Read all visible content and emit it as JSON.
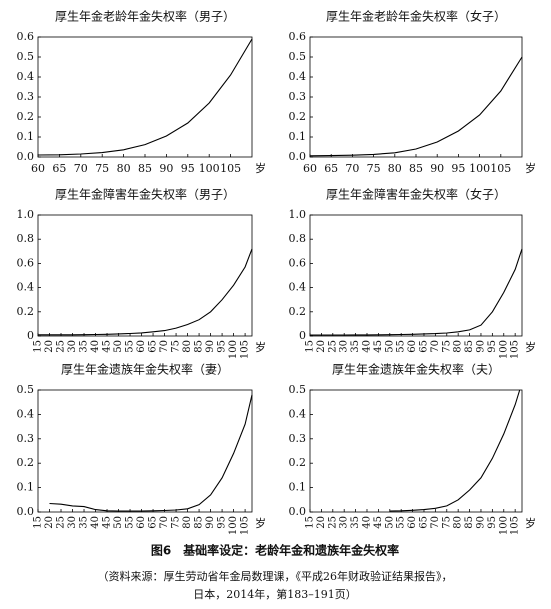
{
  "chart_data": [
    {
      "type": "line",
      "title": "厚生年金老龄年金失权率（男子）",
      "xlabel": "岁",
      "color": "#000000",
      "x": [
        60,
        65,
        70,
        75,
        80,
        85,
        90,
        95,
        100,
        105,
        110
      ],
      "values": [
        0.01,
        0.011,
        0.015,
        0.022,
        0.036,
        0.062,
        0.105,
        0.17,
        0.27,
        0.41,
        0.59
      ],
      "xlim": [
        60,
        110
      ],
      "xticks": [
        60,
        65,
        70,
        75,
        80,
        85,
        90,
        95,
        100,
        105
      ],
      "ylim": [
        0,
        0.6
      ],
      "yticks": [
        {
          "value": 0,
          "label": "0.0"
        },
        0.1,
        0.2,
        0.3,
        0.4,
        0.5,
        0.6
      ]
    },
    {
      "type": "line",
      "title": "厚生年金老龄年金失权率（女子）",
      "xlabel": "岁",
      "color": "#000000",
      "x": [
        60,
        65,
        70,
        75,
        80,
        85,
        90,
        95,
        100,
        105,
        110
      ],
      "values": [
        0.006,
        0.007,
        0.009,
        0.013,
        0.021,
        0.04,
        0.075,
        0.13,
        0.21,
        0.33,
        0.5
      ],
      "xlim": [
        60,
        110
      ],
      "xticks": [
        60,
        65,
        70,
        75,
        80,
        85,
        90,
        95,
        100,
        105
      ],
      "ylim": [
        0,
        0.6
      ],
      "yticks": [
        {
          "value": 0,
          "label": "0.0"
        },
        0.1,
        0.2,
        0.3,
        0.4,
        0.5,
        0.6
      ]
    },
    {
      "type": "line",
      "title": "厚生年金障害年金失权率（男子）",
      "xlabel": "岁",
      "color": "#000000",
      "x": [
        15,
        20,
        25,
        30,
        35,
        40,
        45,
        50,
        55,
        60,
        65,
        70,
        75,
        80,
        85,
        90,
        95,
        100,
        105,
        108
      ],
      "values": [
        0.01,
        0.01,
        0.01,
        0.01,
        0.011,
        0.012,
        0.014,
        0.017,
        0.021,
        0.026,
        0.035,
        0.045,
        0.065,
        0.095,
        0.135,
        0.2,
        0.3,
        0.42,
        0.57,
        0.72
      ],
      "xlim": [
        15,
        108
      ],
      "xticks": [
        15,
        20,
        25,
        30,
        35,
        40,
        45,
        50,
        55,
        60,
        65,
        70,
        75,
        80,
        85,
        90,
        95,
        100,
        105
      ],
      "ylim": [
        0,
        1
      ],
      "yticks": [
        0,
        0.2,
        0.4,
        0.6,
        0.8,
        {
          "value": 1,
          "label": "1.0"
        }
      ]
    },
    {
      "type": "line",
      "title": "厚生年金障害年金失权率（女子）",
      "xlabel": "岁",
      "color": "#000000",
      "x": [
        15,
        20,
        25,
        30,
        35,
        40,
        45,
        50,
        55,
        60,
        65,
        70,
        75,
        80,
        85,
        90,
        95,
        100,
        105,
        108
      ],
      "values": [
        0.008,
        0.008,
        0.008,
        0.008,
        0.009,
        0.009,
        0.01,
        0.011,
        0.012,
        0.014,
        0.017,
        0.02,
        0.025,
        0.035,
        0.05,
        0.09,
        0.2,
        0.36,
        0.55,
        0.72
      ],
      "xlim": [
        15,
        108
      ],
      "xticks": [
        15,
        20,
        25,
        30,
        35,
        40,
        45,
        50,
        55,
        60,
        65,
        70,
        75,
        80,
        85,
        90,
        95,
        100,
        105
      ],
      "ylim": [
        0,
        1
      ],
      "yticks": [
        0,
        0.2,
        0.4,
        0.6,
        0.8,
        {
          "value": 1,
          "label": "1.0"
        }
      ]
    },
    {
      "type": "line",
      "title": "厚生年金遗族年金失权率（妻）",
      "xlabel": "岁",
      "color": "#000000",
      "x": [
        20,
        25,
        30,
        35,
        40,
        45,
        50,
        55,
        60,
        65,
        70,
        75,
        80,
        85,
        90,
        95,
        100,
        105,
        108
      ],
      "values": [
        0.035,
        0.032,
        0.025,
        0.022,
        0.01,
        0.005,
        0.004,
        0.004,
        0.004,
        0.005,
        0.006,
        0.008,
        0.013,
        0.03,
        0.07,
        0.14,
        0.24,
        0.36,
        0.48
      ],
      "xlim": [
        15,
        108
      ],
      "xticks": [
        15,
        20,
        25,
        30,
        35,
        40,
        45,
        50,
        55,
        60,
        65,
        70,
        75,
        80,
        85,
        90,
        95,
        100,
        105
      ],
      "ylim": [
        0,
        0.5
      ],
      "yticks": [
        {
          "value": 0,
          "label": "0.0"
        },
        0.1,
        0.2,
        0.3,
        0.4,
        0.5
      ]
    },
    {
      "type": "line",
      "title": "厚生年金遗族年金失权率（夫）",
      "xlabel": "岁",
      "color": "#000000",
      "x": [
        50,
        55,
        60,
        65,
        70,
        75,
        80,
        85,
        90,
        95,
        100,
        105,
        107
      ],
      "values": [
        0.004,
        0.005,
        0.007,
        0.01,
        0.015,
        0.025,
        0.05,
        0.09,
        0.14,
        0.22,
        0.32,
        0.44,
        0.5
      ],
      "xlim": [
        15,
        108
      ],
      "xticks": [
        15,
        20,
        25,
        30,
        35,
        40,
        45,
        50,
        55,
        60,
        65,
        70,
        75,
        80,
        85,
        90,
        95,
        100,
        105
      ],
      "ylim": [
        0,
        0.5
      ],
      "yticks": [
        {
          "value": 0,
          "label": "0.0"
        },
        0.1,
        0.2,
        0.3,
        0.4,
        0.5
      ]
    }
  ],
  "caption": "图6　基础率设定：老龄年金和遗族年金失权率",
  "source": [
    "（资料来源：厚生劳动省年金局数理课，《平成26年财政验证结果报告》，",
    "日本，2014年，第183–191页）"
  ]
}
